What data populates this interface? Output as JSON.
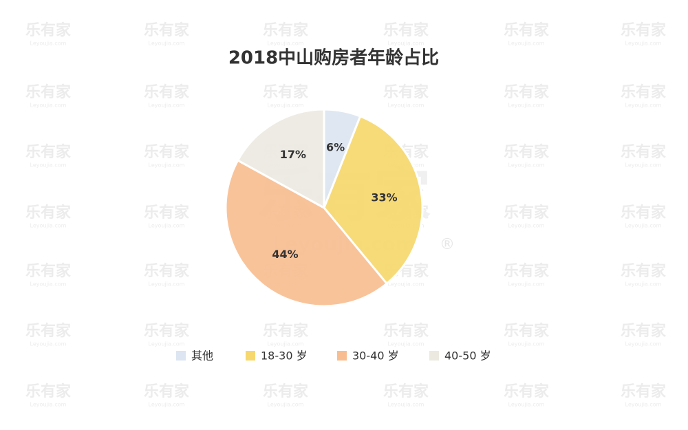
{
  "chart_data": {
    "type": "pie",
    "title": "2018中山购房者年龄占比",
    "categories": [
      "其他",
      "18-30 岁",
      "30-40 岁",
      "40-50 岁"
    ],
    "values": [
      6,
      33,
      44,
      17
    ],
    "value_labels": [
      "6%",
      "33%",
      "44%",
      "17%"
    ],
    "colors": [
      "#dce5f1",
      "#f6d86e",
      "#f8be91",
      "#ece9e1"
    ],
    "legend": "bottom"
  },
  "watermark": {
    "brand": "乐有家",
    "site": "Leyoujia.com",
    "mark": "®"
  }
}
